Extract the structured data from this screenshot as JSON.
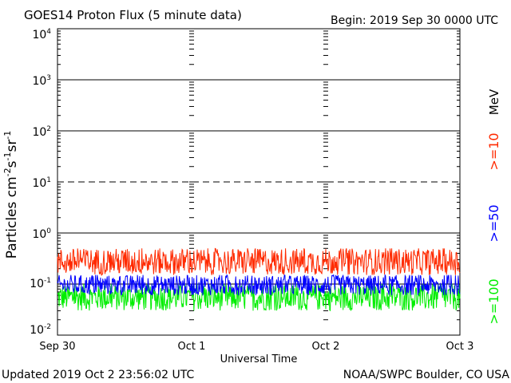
{
  "header": {
    "title": "GOES14 Proton Flux (5 minute data)",
    "begin": "Begin: 2019 Sep 30 0000 UTC"
  },
  "footer": {
    "updated": "Updated 2019 Oct  2 23:56:02 UTC",
    "source": "NOAA/SWPC Boulder, CO USA"
  },
  "colors": {
    "ge10": "#ff2a00",
    "ge50": "#0000ff",
    "ge100": "#00ee00",
    "axis": "#000000"
  },
  "chart_data": {
    "type": "line",
    "title": "GOES14 Proton Flux (5 minute data)",
    "xlabel": "Universal Time",
    "ylabel_main": "Particles cm",
    "ylabel_sup1": "-2",
    "ylabel_mid1": "s",
    "ylabel_sup2": "-1",
    "ylabel_mid2": "sr",
    "ylabel_sup3": "-1",
    "y_scale": "log",
    "ylim": [
      0.01,
      10000
    ],
    "xlim": [
      "2019-09-30 00:00",
      "2019-10-03 00:00"
    ],
    "x_ticks": [
      "Sep 30",
      "Oct 1",
      "Oct 2",
      "Oct 3"
    ],
    "y_ticks": [
      {
        "base": "10",
        "exp": "-2"
      },
      {
        "base": "10",
        "exp": "-1"
      },
      {
        "base": "10",
        "exp": "0"
      },
      {
        "base": "10",
        "exp": "1"
      },
      {
        "base": "10",
        "exp": "2"
      },
      {
        "base": "10",
        "exp": "3"
      },
      {
        "base": "10",
        "exp": "4"
      }
    ],
    "legend_placement": "right, vertical",
    "legend_unit": "MeV",
    "series": [
      {
        "name": ">=10",
        "color": "#ff2a00",
        "typical_range": [
          0.15,
          0.5
        ]
      },
      {
        "name": ">=50",
        "color": "#0000ff",
        "typical_range": [
          0.06,
          0.15
        ]
      },
      {
        "name": ">=100",
        "color": "#00ee00",
        "typical_range": [
          0.03,
          0.1
        ]
      }
    ]
  }
}
